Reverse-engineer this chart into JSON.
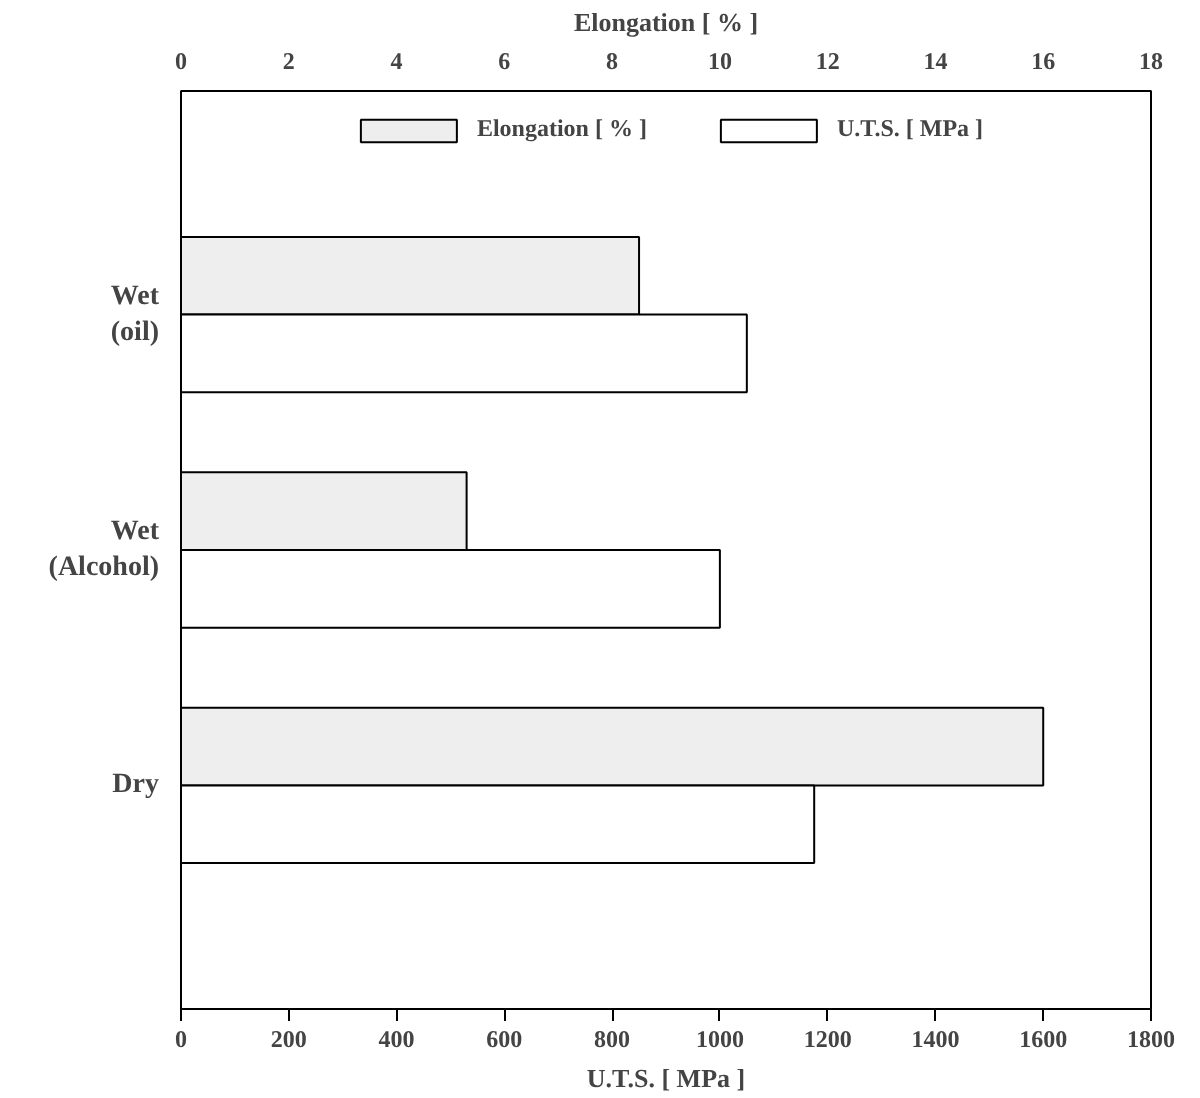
{
  "chart_data": {
    "type": "bar",
    "orientation": "horizontal",
    "categories": [
      "Wet (oil)",
      "Wet (Alcohol)",
      "Dry"
    ],
    "series": [
      {
        "name": "Elongation [ % ]",
        "color": "#eeeeee",
        "axis": "x2",
        "values": [
          8.5,
          5.3,
          16
        ]
      },
      {
        "name": "U.T.S. [ MPa ]",
        "color": "#ffffff",
        "values": [
          1050,
          1000,
          1175
        ]
      }
    ],
    "xlabel": "U.T.S. [ MPa ]",
    "x2label": "Elongation [ % ]",
    "xlim": [
      0,
      1800
    ],
    "xticks": [
      0,
      200,
      400,
      600,
      800,
      1000,
      1200,
      1400,
      1600,
      1800
    ],
    "x2lim": [
      0,
      18
    ],
    "x2ticks": [
      0,
      2,
      4,
      6,
      8,
      10,
      12,
      14,
      16,
      18
    ],
    "legend": "top",
    "grid": false
  }
}
